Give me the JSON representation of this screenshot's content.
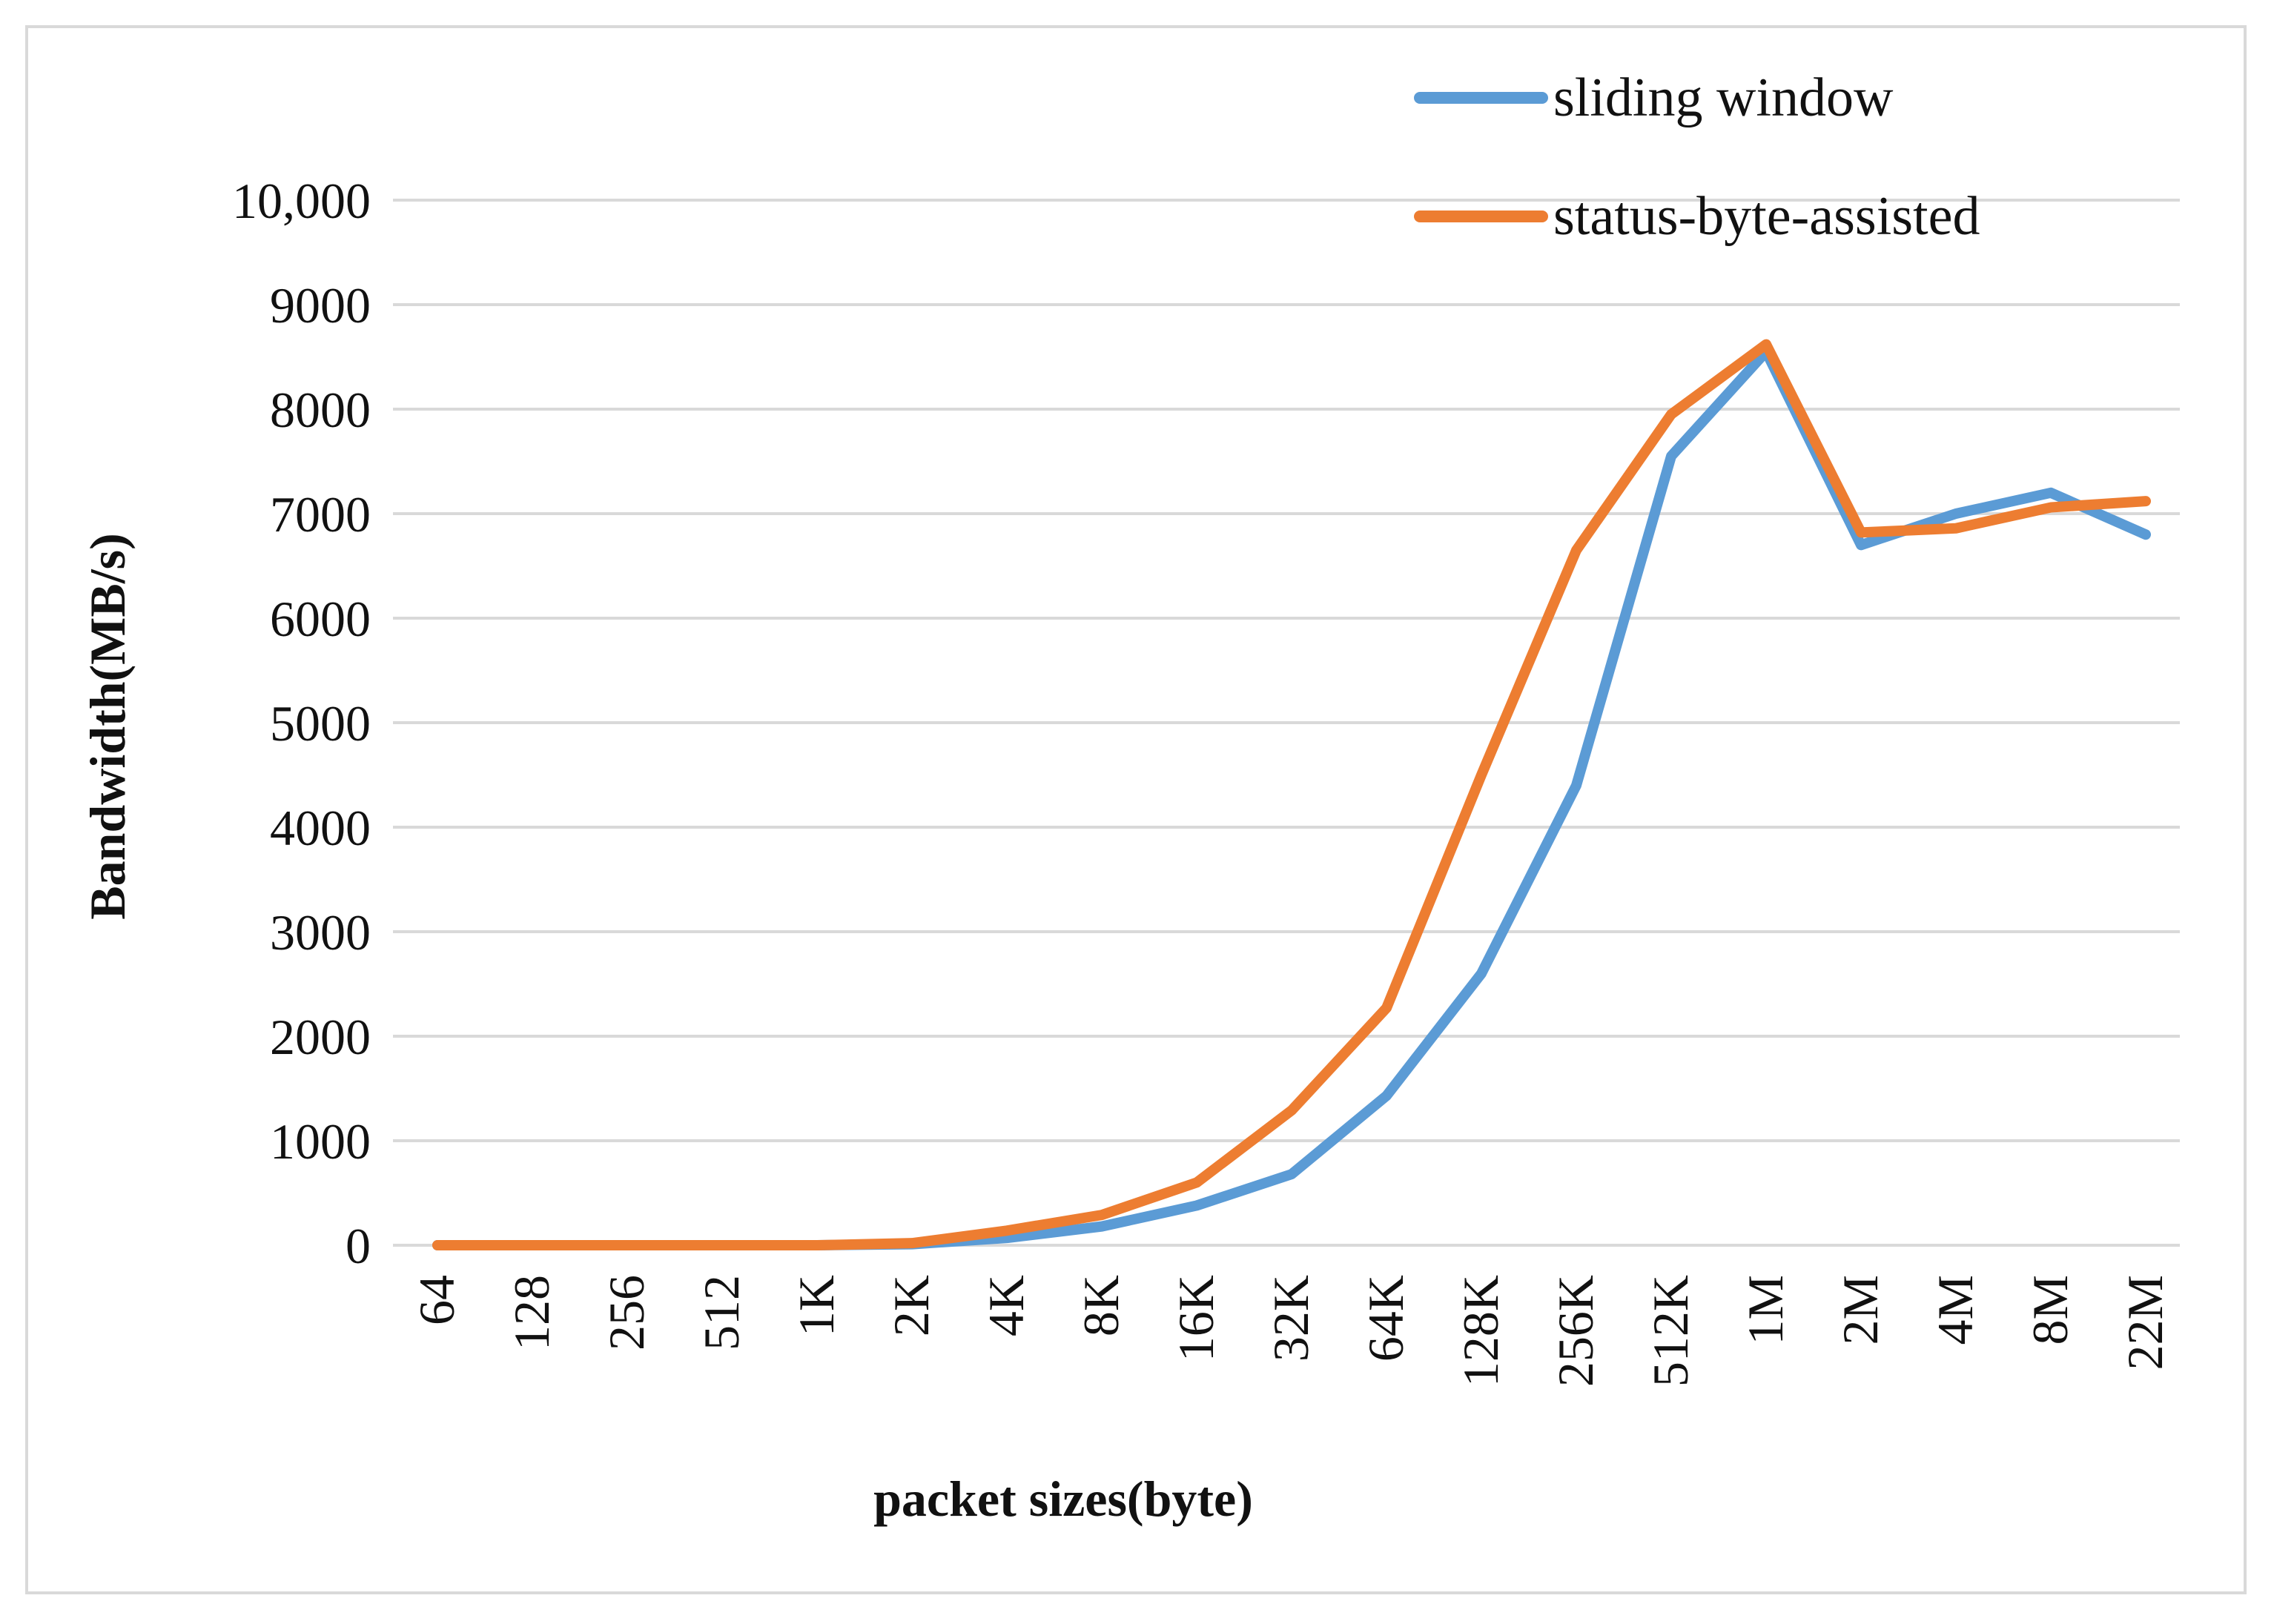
{
  "chart_data": {
    "type": "line",
    "title": "",
    "xlabel": "packet sizes(byte)",
    "ylabel": "Bandwidth(MB/s)",
    "categories": [
      "64",
      "128",
      "256",
      "512",
      "1K",
      "2K",
      "4K",
      "8K",
      "16K",
      "32K",
      "64K",
      "128K",
      "256K",
      "512K",
      "1M",
      "2M",
      "4M",
      "8M",
      "22M"
    ],
    "ylim": [
      0,
      10000
    ],
    "yticks": [
      0,
      1000,
      2000,
      3000,
      4000,
      5000,
      6000,
      7000,
      8000,
      9000,
      10000
    ],
    "ytick_labels": [
      "0",
      "1000",
      "2000",
      "3000",
      "4000",
      "5000",
      "6000",
      "7000",
      "8000",
      "9000",
      "10,000"
    ],
    "grid": true,
    "legend_position": "top-right",
    "series": [
      {
        "name": "sliding window",
        "color": "#5B9BD5",
        "values": [
          0,
          0,
          0,
          0,
          0,
          10,
          70,
          180,
          380,
          680,
          1430,
          2600,
          4400,
          7550,
          8550,
          6700,
          7000,
          7200,
          6800
        ]
      },
      {
        "name": "status-byte-assisted",
        "color": "#ED7D31",
        "values": [
          0,
          0,
          0,
          0,
          0,
          20,
          140,
          290,
          600,
          1290,
          2270,
          4500,
          6650,
          7950,
          8620,
          6820,
          6860,
          7060,
          7120
        ]
      }
    ]
  },
  "colors": {
    "grid": "#d9d9d9",
    "frame": "#d9d9d9",
    "text": "#111111"
  }
}
